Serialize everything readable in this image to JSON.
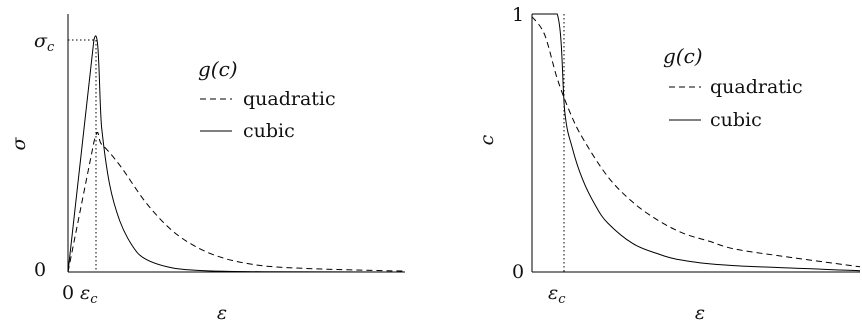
{
  "chart_data": [
    {
      "type": "line",
      "title": "",
      "xlabel": "ε",
      "ylabel": "σ",
      "x_tick_labels": [
        "0",
        "ε_c"
      ],
      "y_tick_labels": [
        "0",
        "σ_c"
      ],
      "xlim": [
        0,
        13
      ],
      "ylim": [
        0,
        1.05
      ],
      "grid": false,
      "legend": {
        "title": "g(c)",
        "position": "upper-right",
        "entries": [
          "quadratic",
          "cubic"
        ]
      },
      "annotations": {
        "peak_marker": "dotted lines at (ε_c, σ_c)"
      },
      "series": [
        {
          "name": "quadratic",
          "style": "dashed",
          "x": [
            0,
            1,
            1.3,
            2,
            3,
            4,
            5,
            6,
            7,
            8,
            10,
            13
          ],
          "y": [
            0,
            0.56,
            0.55,
            0.46,
            0.3,
            0.18,
            0.105,
            0.06,
            0.035,
            0.022,
            0.012,
            0.004
          ]
        },
        {
          "name": "cubic",
          "style": "solid",
          "x": [
            0,
            1,
            1.3,
            1.6,
            2,
            2.5,
            3,
            4,
            5,
            6,
            8,
            13
          ],
          "y": [
            0,
            1.0,
            0.62,
            0.38,
            0.22,
            0.11,
            0.055,
            0.018,
            0.007,
            0.003,
            0.001,
            0.0
          ]
        }
      ]
    },
    {
      "type": "line",
      "title": "",
      "xlabel": "ε",
      "ylabel": "c",
      "x_tick_labels": [
        "0",
        "ε_c"
      ],
      "y_tick_labels": [
        "0",
        "1"
      ],
      "xlim": [
        0,
        13
      ],
      "ylim": [
        0,
        1.05
      ],
      "grid": false,
      "legend": {
        "title": "g(c)",
        "position": "upper-right",
        "entries": [
          "quadratic",
          "cubic"
        ]
      },
      "annotations": {
        "peak_marker": "dotted line at ε_c"
      },
      "series": [
        {
          "name": "quadratic",
          "style": "dashed",
          "x": [
            0,
            0.5,
            1,
            1.5,
            2,
            3,
            4,
            5,
            6,
            7,
            8,
            10,
            13
          ],
          "y": [
            0.99,
            0.92,
            0.75,
            0.62,
            0.52,
            0.37,
            0.27,
            0.2,
            0.15,
            0.12,
            0.09,
            0.06,
            0.02
          ]
        },
        {
          "name": "cubic",
          "style": "solid",
          "x": [
            0,
            1,
            1.3,
            1.6,
            2,
            2.5,
            3,
            4,
            5,
            6,
            8,
            13
          ],
          "y": [
            1.0,
            1.0,
            0.62,
            0.48,
            0.36,
            0.26,
            0.19,
            0.11,
            0.07,
            0.045,
            0.025,
            0.005
          ]
        }
      ]
    }
  ],
  "labels": {
    "left": {
      "ylabel": "σ",
      "xlabel": "ε",
      "y_top": "σ",
      "y_top_sub": "c",
      "y_zero": "0",
      "x_zero": "0",
      "x_c": "ε",
      "x_c_sub": "c",
      "legend_title": "g(c)",
      "legend_quadratic": "quadratic",
      "legend_cubic": "cubic"
    },
    "right": {
      "ylabel": "c",
      "xlabel": "ε",
      "y_top": "1",
      "y_zero": "0",
      "x_zero": "",
      "x_c": "ε",
      "x_c_sub": "c",
      "legend_title": "g(c)",
      "legend_quadratic": "quadratic",
      "legend_cubic": "cubic"
    }
  }
}
